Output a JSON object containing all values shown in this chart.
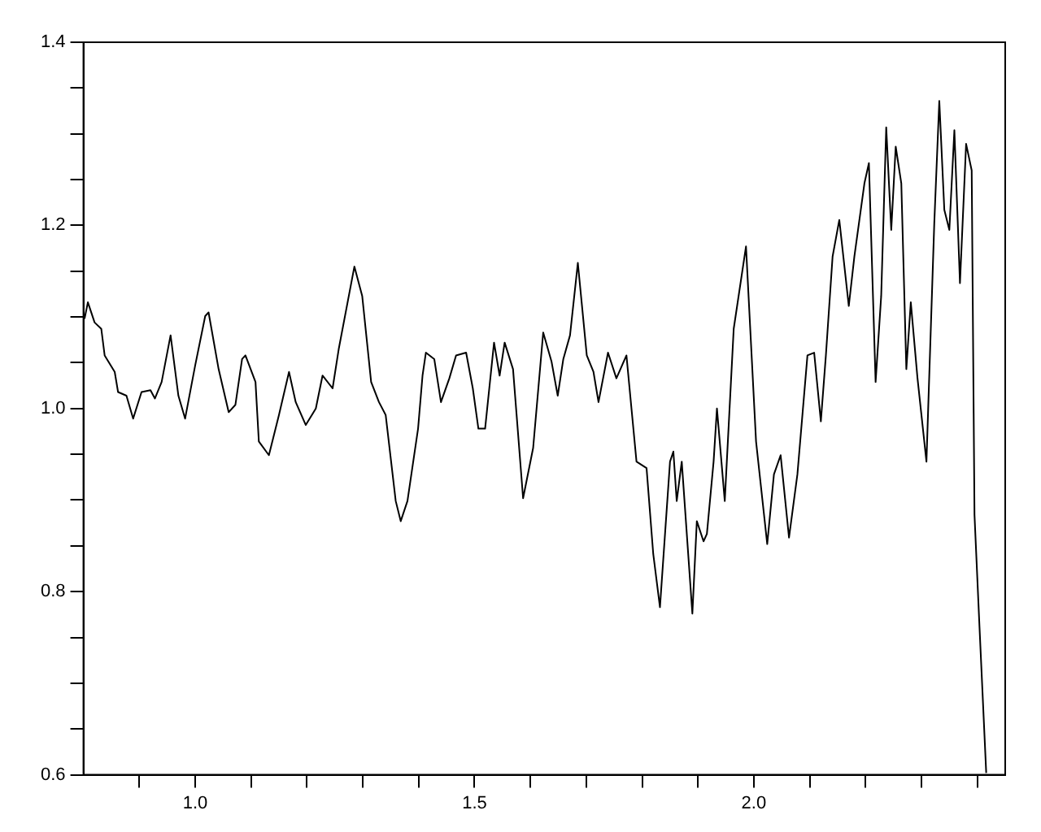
{
  "chart_data": {
    "type": "line",
    "x": [
      0.802,
      0.808,
      0.82,
      0.832,
      0.838,
      0.856,
      0.862,
      0.877,
      0.889,
      0.904,
      0.92,
      0.928,
      0.94,
      0.956,
      0.97,
      0.982,
      1.0,
      1.018,
      1.024,
      1.042,
      1.06,
      1.072,
      1.084,
      1.09,
      1.108,
      1.114,
      1.132,
      1.15,
      1.168,
      1.18,
      1.198,
      1.216,
      1.228,
      1.246,
      1.257,
      1.285,
      1.299,
      1.315,
      1.329,
      1.341,
      1.359,
      1.368,
      1.38,
      1.399,
      1.407,
      1.413,
      1.428,
      1.44,
      1.455,
      1.467,
      1.485,
      1.497,
      1.507,
      1.519,
      1.535,
      1.545,
      1.554,
      1.569,
      1.581,
      1.587,
      1.605,
      1.623,
      1.638,
      1.649,
      1.659,
      1.671,
      1.685,
      1.701,
      1.713,
      1.722,
      1.739,
      1.754,
      1.772,
      1.79,
      1.808,
      1.82,
      1.832,
      1.85,
      1.856,
      1.862,
      1.871,
      1.89,
      1.898,
      1.91,
      1.916,
      1.928,
      1.934,
      1.948,
      1.964,
      1.986,
      2.004,
      2.024,
      2.036,
      2.048,
      2.063,
      2.078,
      2.096,
      2.108,
      2.12,
      2.129,
      2.141,
      2.153,
      2.17,
      2.18,
      2.198,
      2.206,
      2.218,
      2.228,
      2.237,
      2.246,
      2.254,
      2.264,
      2.273,
      2.281,
      2.293,
      2.309,
      2.323,
      2.332,
      2.341,
      2.35,
      2.359,
      2.369,
      2.38,
      2.39,
      2.395,
      2.404,
      2.416
    ],
    "series": [
      {
        "color": "#000000",
        "values": [
          1.098,
          1.116,
          1.094,
          1.087,
          1.058,
          1.04,
          1.018,
          1.014,
          0.989,
          1.018,
          1.02,
          1.011,
          1.029,
          1.08,
          1.014,
          0.989,
          1.047,
          1.101,
          1.105,
          1.043,
          0.996,
          1.004,
          1.054,
          1.058,
          1.029,
          0.964,
          0.949,
          0.993,
          1.04,
          1.007,
          0.982,
          1.0,
          1.036,
          1.022,
          1.065,
          1.155,
          1.123,
          1.029,
          1.007,
          0.993,
          0.899,
          0.877,
          0.899,
          0.978,
          1.036,
          1.061,
          1.054,
          1.007,
          1.033,
          1.058,
          1.061,
          1.022,
          0.978,
          0.978,
          1.072,
          1.036,
          1.072,
          1.043,
          0.949,
          0.902,
          0.957,
          1.083,
          1.051,
          1.014,
          1.054,
          1.08,
          1.159,
          1.058,
          1.04,
          1.007,
          1.061,
          1.033,
          1.058,
          0.942,
          0.935,
          0.841,
          0.783,
          0.942,
          0.953,
          0.899,
          0.942,
          0.776,
          0.877,
          0.855,
          0.863,
          0.942,
          1.0,
          0.899,
          1.087,
          1.177,
          0.964,
          0.852,
          0.928,
          0.949,
          0.859,
          0.928,
          1.058,
          1.061,
          0.986,
          1.058,
          1.166,
          1.206,
          1.112,
          1.166,
          1.246,
          1.268,
          1.029,
          1.123,
          1.307,
          1.195,
          1.286,
          1.246,
          1.043,
          1.116,
          1.033,
          0.942,
          1.202,
          1.336,
          1.217,
          1.195,
          1.304,
          1.137,
          1.289,
          1.26,
          0.884,
          0.761,
          0.602
        ]
      }
    ],
    "xlim": [
      0.8,
      2.45
    ],
    "xticks": [
      {
        "value": 0.9,
        "label": null
      },
      {
        "value": 1.0,
        "label": "1.0"
      },
      {
        "value": 1.1,
        "label": null
      },
      {
        "value": 1.2,
        "label": null
      },
      {
        "value": 1.3,
        "label": null
      },
      {
        "value": 1.4,
        "label": null
      },
      {
        "value": 1.5,
        "label": "1.5"
      },
      {
        "value": 1.6,
        "label": null
      },
      {
        "value": 1.7,
        "label": null
      },
      {
        "value": 1.8,
        "label": null
      },
      {
        "value": 1.9,
        "label": null
      },
      {
        "value": 2.0,
        "label": "2.0"
      },
      {
        "value": 2.1,
        "label": null
      },
      {
        "value": 2.2,
        "label": null
      },
      {
        "value": 2.3,
        "label": null
      },
      {
        "value": 2.4,
        "label": null
      }
    ],
    "ylim": [
      0.6,
      1.4
    ],
    "yticks": [
      {
        "value": 0.6,
        "label": "0.6"
      },
      {
        "value": 0.65,
        "label": null
      },
      {
        "value": 0.7,
        "label": null
      },
      {
        "value": 0.75,
        "label": null
      },
      {
        "value": 0.8,
        "label": "0.8"
      },
      {
        "value": 0.85,
        "label": null
      },
      {
        "value": 0.9,
        "label": null
      },
      {
        "value": 0.95,
        "label": null
      },
      {
        "value": 1.0,
        "label": "1.0"
      },
      {
        "value": 1.05,
        "label": null
      },
      {
        "value": 1.1,
        "label": null
      },
      {
        "value": 1.15,
        "label": null
      },
      {
        "value": 1.2,
        "label": "1.2"
      },
      {
        "value": 1.25,
        "label": null
      },
      {
        "value": 1.3,
        "label": null
      },
      {
        "value": 1.35,
        "label": null
      },
      {
        "value": 1.4,
        "label": "1.4"
      }
    ],
    "grid": false,
    "legend": false,
    "marker": "none",
    "line_style": "solid"
  }
}
